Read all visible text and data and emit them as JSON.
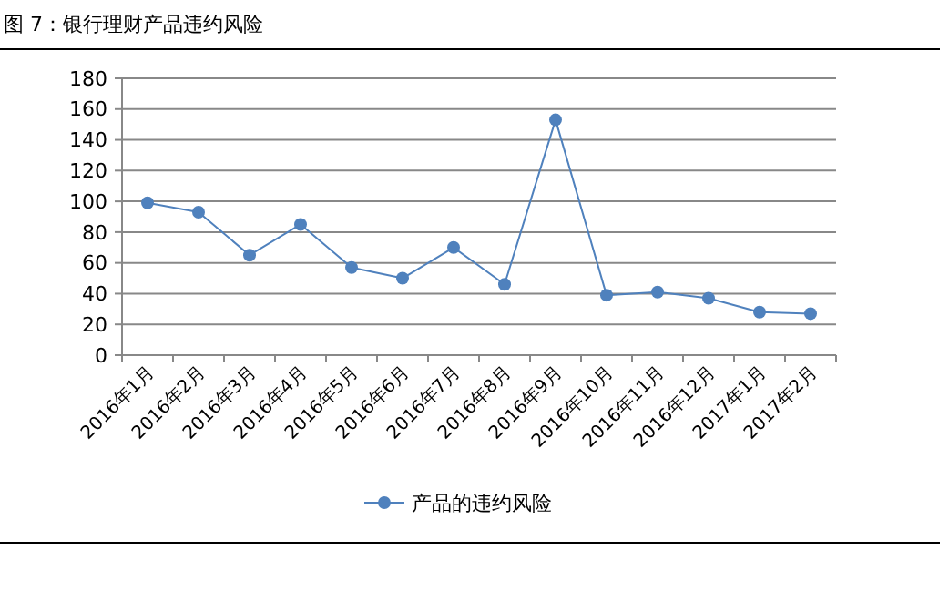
{
  "chart_data": {
    "type": "line",
    "title": "图 7：银行理财产品违约风险",
    "categories": [
      "2016年1月",
      "2016年2月",
      "2016年3月",
      "2016年4月",
      "2016年5月",
      "2016年6月",
      "2016年7月",
      "2016年8月",
      "2016年9月",
      "2016年10月",
      "2016年11月",
      "2016年12月",
      "2017年1月",
      "2017年2月"
    ],
    "series": [
      {
        "name": "产品的违约风险",
        "color": "#4f81bd",
        "values": [
          99,
          93,
          65,
          85,
          57,
          50,
          70,
          46,
          153,
          39,
          41,
          37,
          28,
          27
        ]
      }
    ],
    "ylim": [
      0,
      180
    ],
    "yticks": [
      0,
      20,
      40,
      60,
      80,
      100,
      120,
      140,
      160,
      180
    ],
    "grid": "y",
    "legend": "bottom",
    "marker": "circle"
  }
}
